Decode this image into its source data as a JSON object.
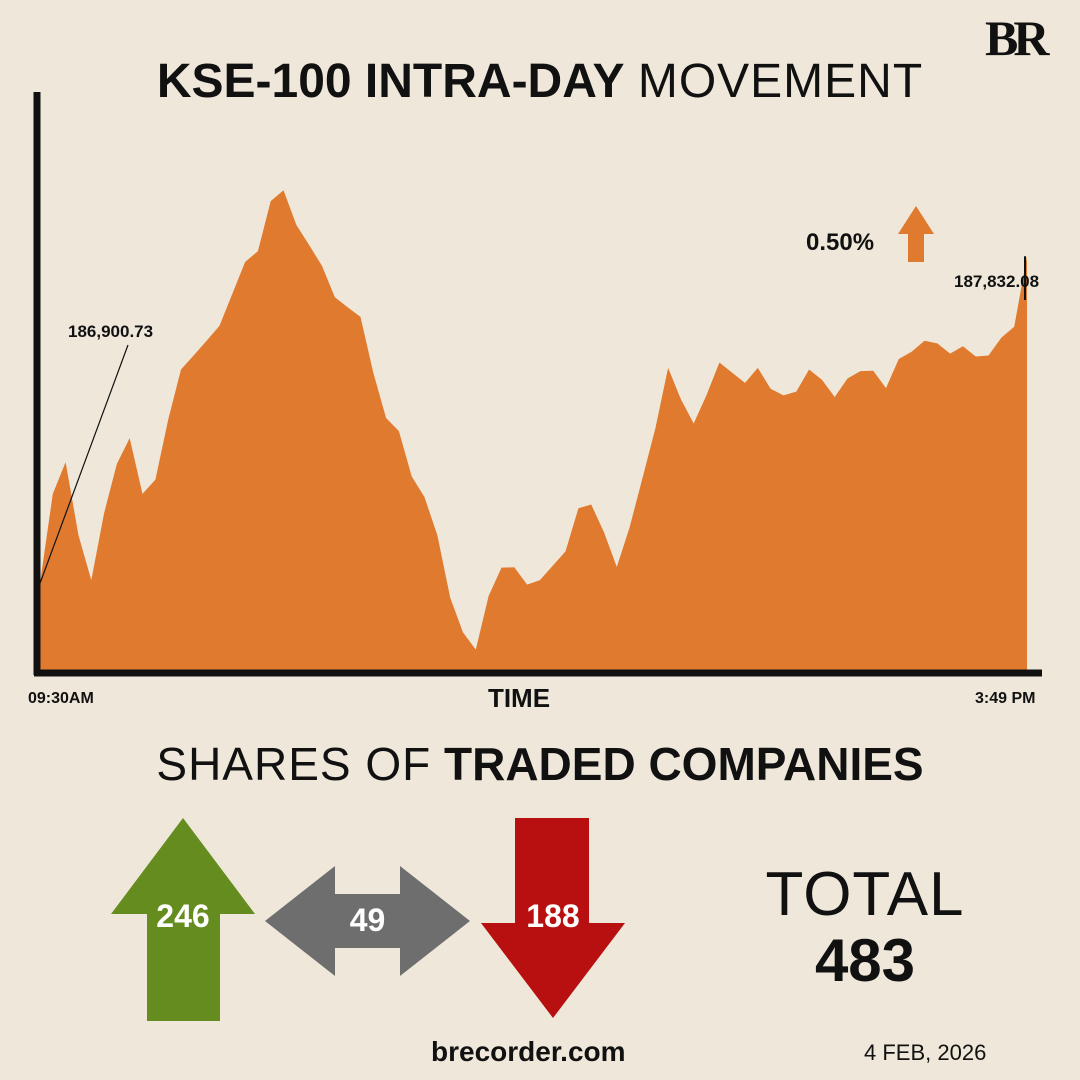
{
  "logo": "BR",
  "title": {
    "bold": "KSE-100 INTRA-DAY",
    "light": "MOVEMENT"
  },
  "change": {
    "percent": "0.50%",
    "direction": "up",
    "color": "#e07a2e"
  },
  "chart_data": {
    "type": "area",
    "title": "KSE-100 INTRA-DAY MOVEMENT",
    "xlabel": "TIME",
    "ylabel": "",
    "x_start_label": "09:30AM",
    "x_end_label": "3:49 PM",
    "start_value": "186,900.73",
    "end_value": "187,832.08",
    "ylim": [
      186650,
      188300
    ],
    "fill_color": "#e07a2e",
    "series": [
      {
        "name": "KSE-100",
        "values": [
          186900,
          187150,
          187250,
          187050,
          186900,
          187100,
          187250,
          187300,
          187150,
          187200,
          187380,
          187500,
          187550,
          187600,
          187620,
          187720,
          187820,
          187860,
          187980,
          188020,
          187930,
          187850,
          187800,
          187720,
          187700,
          187650,
          187500,
          187380,
          187320,
          187200,
          187150,
          187050,
          186850,
          186760,
          186720,
          186850,
          186940,
          186950,
          186910,
          186900,
          186950,
          187000,
          187100,
          187120,
          187050,
          186960,
          187050,
          187200,
          187350,
          187500,
          187420,
          187360,
          187450,
          187520,
          187500,
          187480,
          187500,
          187450,
          187440,
          187460,
          187500,
          187480,
          187440,
          187470,
          187500,
          187510,
          187470,
          187530,
          187560,
          187600,
          187570,
          187550,
          187580,
          187560,
          187540,
          187600,
          187640,
          187832
        ]
      }
    ]
  },
  "shares": {
    "title_light": "SHARES OF",
    "title_bold": "TRADED COMPANIES",
    "advanced": {
      "value": "246",
      "color": "#648c1e"
    },
    "unchanged": {
      "value": "49",
      "color": "#6e6e6e"
    },
    "declined": {
      "value": "188",
      "color": "#b80f10"
    },
    "total_label": "TOTAL",
    "total_value": "483"
  },
  "footer": {
    "site": "brecorder.com",
    "date": "4 FEB, 2026"
  }
}
